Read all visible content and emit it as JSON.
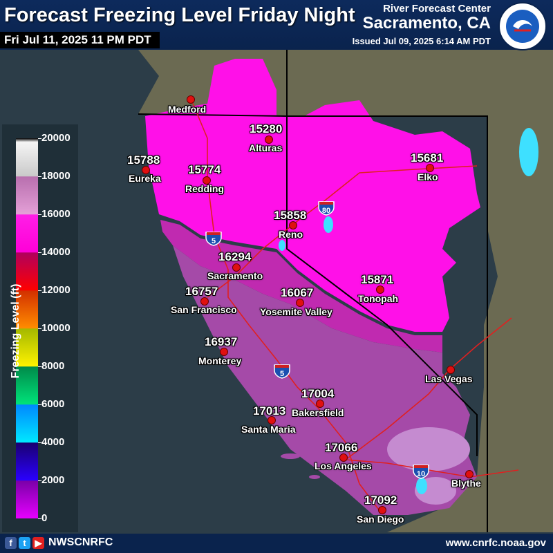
{
  "header": {
    "title": "Forecast Freezing Level Friday Night",
    "valid_time": "Fri Jul 11, 2025 11 PM PDT",
    "agency": "River Forecast Center",
    "office": "Sacramento, CA",
    "issued": "Issued Jul 09, 2025 6:14 AM PDT",
    "logo_text": "NATIONAL WEATHER SERVICE",
    "logo_icon": "nws-logo-icon"
  },
  "legend": {
    "title": "Freezing Level (ft)",
    "ticks": [
      "20000",
      "18000",
      "16000",
      "14000",
      "12000",
      "10000",
      "8000",
      "6000",
      "4000",
      "2000",
      "0"
    ],
    "colors": {
      "18000-20000": "#d9d9d9",
      "16000-18000": "#d88ccb",
      "14000-16000": "#ff10e0",
      "12000-14000": "#e00000",
      "10000-12000": "#e06a00",
      "8000-10000": "#e0e000",
      "6000-8000": "#00b060",
      "4000-6000": "#00b8ff",
      "2000-4000": "#1a10c0",
      "0-2000": "#b000e0"
    }
  },
  "cities": [
    {
      "name": "Medford",
      "value": ""
    },
    {
      "name": "Alturas",
      "value": "15280"
    },
    {
      "name": "Eureka",
      "value": "15788"
    },
    {
      "name": "Redding",
      "value": "15774"
    },
    {
      "name": "Elko",
      "value": "15681"
    },
    {
      "name": "Reno",
      "value": "15858"
    },
    {
      "name": "Sacramento",
      "value": "16294"
    },
    {
      "name": "San Francisco",
      "value": "16757"
    },
    {
      "name": "Yosemite Valley",
      "value": "16067"
    },
    {
      "name": "Tonopah",
      "value": "15871"
    },
    {
      "name": "Monterey",
      "value": "16937"
    },
    {
      "name": "Las Vegas",
      "value": ""
    },
    {
      "name": "Bakersfield",
      "value": "17004"
    },
    {
      "name": "Santa Maria",
      "value": "17013"
    },
    {
      "name": "Los Angeles",
      "value": "17066"
    },
    {
      "name": "Blythe",
      "value": ""
    },
    {
      "name": "San Diego",
      "value": "17092"
    }
  ],
  "highways": [
    "5",
    "80",
    "5",
    "10"
  ],
  "footer": {
    "handle": "NWSCNRFC",
    "website": "www.cnrfc.noaa.gov",
    "social_icons": [
      "facebook-icon",
      "twitter-icon",
      "youtube-icon"
    ]
  }
}
